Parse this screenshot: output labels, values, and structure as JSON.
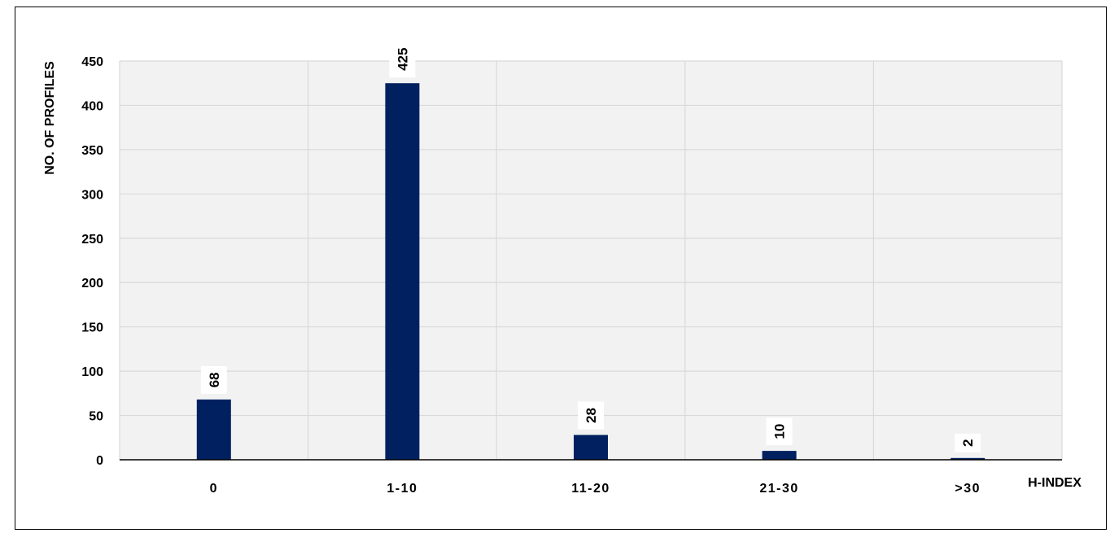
{
  "chart_data": {
    "type": "bar",
    "categories": [
      "0",
      "1-10",
      "11-20",
      "21-30",
      ">30"
    ],
    "values": [
      68,
      425,
      28,
      10,
      2
    ],
    "xlabel": "H-INDEX",
    "ylabel": "NO. OF PROFILES",
    "ylim": [
      0,
      450
    ],
    "yticks": [
      0,
      50,
      100,
      150,
      200,
      250,
      300,
      350,
      400,
      450
    ],
    "grid": true,
    "bar_color": "#002060",
    "plot_background": "#f2f2f2",
    "data_labels": true
  }
}
